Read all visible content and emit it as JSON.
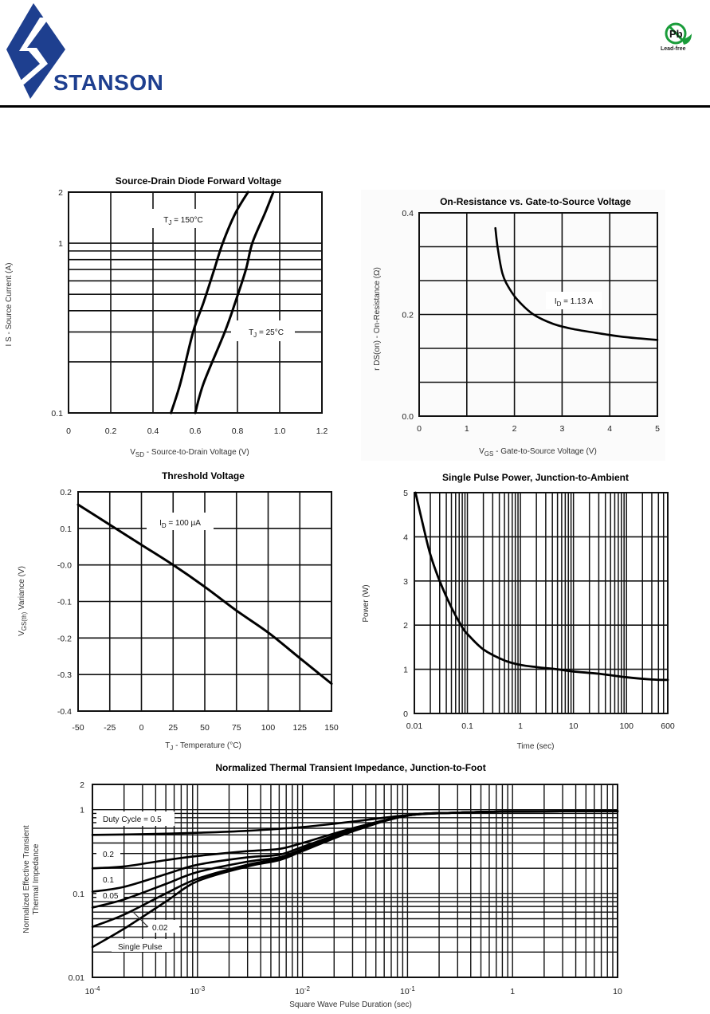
{
  "header": {
    "brand": "STANSON",
    "brand_color": "#1e3f8f",
    "lead_free_badge": {
      "symbol": "Pb",
      "label": "Lead-free",
      "color": "#1a9c3a"
    }
  },
  "chart_data": [
    {
      "id": "diode",
      "type": "line",
      "title": "Source-Drain Diode Forward Voltage",
      "xlabel": "V",
      "xlabel_sub": "SD",
      "xlabel_rest": "  -  Source-to-Drain Voltage (V)",
      "ylabel": "I S  -  Source Current (A)",
      "xscale": "linear",
      "yscale": "log",
      "xlim": [
        0,
        1.2
      ],
      "ylim": [
        0.1,
        2
      ],
      "xticks": [
        "0",
        "0.2",
        "0.4",
        "0.6",
        "0.8",
        "1.0",
        "1.2"
      ],
      "yticks": [
        {
          "v": 2,
          "label": "2"
        },
        {
          "v": 1,
          "label": "1"
        },
        {
          "v": 0.1,
          "label": "0.1"
        }
      ],
      "grid": true,
      "series": [
        {
          "name": "TJ = 150°C",
          "label_main": "T",
          "label_sub": "J",
          "label_rest": " = 150°C",
          "x": [
            0.485,
            0.53,
            0.59,
            0.64,
            0.69,
            0.73,
            0.79,
            0.85
          ],
          "y": [
            0.1,
            0.15,
            0.3,
            0.45,
            0.7,
            1.0,
            1.5,
            2.0
          ]
        },
        {
          "name": "TJ = 25°C",
          "label_main": "T",
          "label_sub": "J",
          "label_rest": " = 25°C",
          "x": [
            0.6,
            0.64,
            0.74,
            0.79,
            0.84,
            0.87,
            0.93,
            0.97
          ],
          "y": [
            0.1,
            0.15,
            0.3,
            0.45,
            0.7,
            1.0,
            1.5,
            2.0
          ]
        }
      ]
    },
    {
      "id": "rdson",
      "type": "line",
      "title": "On-Resistance vs. Gate-to-Source Voltage",
      "xlabel": "V",
      "xlabel_sub": "GS",
      "xlabel_rest": " - Gate-to-Source Voltage (V)",
      "ylabel": "r DS(on)  -  On-Resistance (Ω)",
      "xlim": [
        0,
        5
      ],
      "ylim": [
        0,
        0.4
      ],
      "xticks": [
        "0",
        "1",
        "2",
        "3",
        "4",
        "5"
      ],
      "yticks": [
        {
          "v": 0.4,
          "label": "0.4"
        },
        {
          "v": 0.2,
          "label": "0.2"
        },
        {
          "v": 0.0,
          "label": "0.0"
        }
      ],
      "grid": true,
      "annotation": {
        "main": "I",
        "sub": "D",
        "rest": " = 1.13 A"
      },
      "series": [
        {
          "name": "ID = 1.13 A",
          "x": [
            1.6,
            1.65,
            1.75,
            1.9,
            2.1,
            2.4,
            2.8,
            3.2,
            3.7,
            4.2,
            4.6,
            5.0
          ],
          "y": [
            0.37,
            0.33,
            0.28,
            0.25,
            0.225,
            0.2,
            0.182,
            0.172,
            0.164,
            0.157,
            0.153,
            0.15
          ]
        }
      ]
    },
    {
      "id": "vth",
      "type": "line",
      "title": "Threshold Voltage",
      "xlabel": "T",
      "xlabel_sub": "J",
      "xlabel_rest": "  -  Temperature (°C)",
      "ylabel": "V GS(th)  Variance (V)",
      "xlim": [
        -50,
        150
      ],
      "ylim": [
        -0.4,
        0.2
      ],
      "xticks": [
        "-50",
        "-25",
        "0",
        "25",
        "50",
        "75",
        "100",
        "125",
        "150"
      ],
      "yticks": [
        {
          "v": 0.2,
          "label": "0.2"
        },
        {
          "v": 0.1,
          "label": "0.1"
        },
        {
          "v": 0.0,
          "label": "-0.0"
        },
        {
          "v": -0.1,
          "label": "-0.1"
        },
        {
          "v": -0.2,
          "label": "-0.2"
        },
        {
          "v": -0.3,
          "label": "-0.3"
        },
        {
          "v": -0.4,
          "label": "-0.4"
        }
      ],
      "grid": true,
      "annotation": {
        "main": "I",
        "sub": "D",
        "rest": " = 100 µA"
      },
      "series": [
        {
          "name": "ID = 100 µA",
          "x": [
            -50,
            -25,
            0,
            25,
            50,
            75,
            100,
            125,
            150
          ],
          "y": [
            0.165,
            0.11,
            0.055,
            0.0,
            -0.06,
            -0.125,
            -0.185,
            -0.255,
            -0.325
          ]
        }
      ]
    },
    {
      "id": "power",
      "type": "line",
      "title": "Single Pulse Power, Junction-to-Ambient",
      "xlabel": "Time (sec)",
      "ylabel": "Power  (W)",
      "xscale": "log",
      "xlim": [
        0.01,
        600
      ],
      "ylim": [
        0,
        5
      ],
      "xticks": [
        {
          "v": 0.01,
          "label": "0.01"
        },
        {
          "v": 0.1,
          "label": "0.1"
        },
        {
          "v": 1,
          "label": "1"
        },
        {
          "v": 10,
          "label": "10"
        },
        {
          "v": 100,
          "label": "100"
        },
        {
          "v": 600,
          "label": "600"
        }
      ],
      "yticks": [
        "0",
        "1",
        "2",
        "3",
        "4",
        "5"
      ],
      "grid": true,
      "series": [
        {
          "name": "Single Pulse",
          "x": [
            0.0105,
            0.015,
            0.02,
            0.03,
            0.05,
            0.08,
            0.1,
            0.2,
            0.5,
            1,
            2,
            5,
            10,
            30,
            100,
            300,
            600
          ],
          "y": [
            5.0,
            4.2,
            3.6,
            3.0,
            2.4,
            1.95,
            1.8,
            1.45,
            1.2,
            1.1,
            1.05,
            1.0,
            0.95,
            0.9,
            0.82,
            0.77,
            0.76
          ]
        }
      ]
    },
    {
      "id": "zth",
      "type": "line",
      "title": "Normalized Thermal Transient Impedance, Junction-to-Foot",
      "xlabel": "Square Wave Pulse Duration (sec)",
      "ylabel_line1": "Normalized Effective Transient",
      "ylabel_line2": "Thermal Impedance",
      "xscale": "log",
      "yscale": "log",
      "xlim": [
        0.0001,
        10
      ],
      "ylim": [
        0.01,
        2
      ],
      "xticks": [
        {
          "v": 0.0001,
          "base": "10",
          "exp": "-4"
        },
        {
          "v": 0.001,
          "base": "10",
          "exp": "-3"
        },
        {
          "v": 0.01,
          "base": "10",
          "exp": "-2"
        },
        {
          "v": 0.1,
          "base": "10",
          "exp": "-1"
        },
        {
          "v": 1,
          "base": "1",
          "exp": ""
        },
        {
          "v": 10,
          "base": "10",
          "exp": ""
        }
      ],
      "yticks": [
        {
          "v": 2,
          "label": "2"
        },
        {
          "v": 1,
          "label": "1"
        },
        {
          "v": 0.1,
          "label": "0.1"
        },
        {
          "v": 0.01,
          "label": "0.01"
        }
      ],
      "grid": true,
      "labels": [
        "Duty Cycle = 0.5",
        "0.2",
        "0.1",
        "0.05",
        "0.02",
        "Single Pulse"
      ],
      "series": [
        {
          "name": "Duty Cycle = 0.5",
          "x": [
            0.0001,
            0.0003,
            0.001,
            0.003,
            0.01,
            0.03,
            0.1,
            0.3,
            1,
            10
          ],
          "y": [
            0.5,
            0.51,
            0.53,
            0.56,
            0.62,
            0.72,
            0.86,
            0.92,
            0.95,
            0.96
          ]
        },
        {
          "name": "0.2",
          "x": [
            0.0001,
            0.0002,
            0.0005,
            0.001,
            0.003,
            0.006,
            0.01,
            0.03,
            0.1,
            0.3,
            1,
            10
          ],
          "y": [
            0.2,
            0.21,
            0.25,
            0.28,
            0.32,
            0.34,
            0.4,
            0.6,
            0.85,
            0.92,
            0.95,
            0.96
          ]
        },
        {
          "name": "0.1",
          "x": [
            0.0001,
            0.0002,
            0.0005,
            0.001,
            0.003,
            0.006,
            0.01,
            0.03,
            0.1,
            0.3,
            1,
            10
          ],
          "y": [
            0.105,
            0.12,
            0.17,
            0.22,
            0.27,
            0.29,
            0.36,
            0.58,
            0.85,
            0.92,
            0.95,
            0.96
          ]
        },
        {
          "name": "0.05",
          "x": [
            0.0001,
            0.0002,
            0.0005,
            0.001,
            0.003,
            0.006,
            0.01,
            0.03,
            0.1,
            0.3,
            1,
            10
          ],
          "y": [
            0.068,
            0.085,
            0.13,
            0.18,
            0.24,
            0.27,
            0.34,
            0.57,
            0.85,
            0.92,
            0.95,
            0.96
          ]
        },
        {
          "name": "0.02",
          "x": [
            0.0001,
            0.0002,
            0.0005,
            0.001,
            0.003,
            0.006,
            0.01,
            0.03,
            0.1,
            0.3,
            1,
            10
          ],
          "y": [
            0.04,
            0.056,
            0.1,
            0.15,
            0.22,
            0.26,
            0.33,
            0.56,
            0.85,
            0.92,
            0.95,
            0.96
          ]
        },
        {
          "name": "Single Pulse",
          "x": [
            0.0001,
            0.0002,
            0.0005,
            0.001,
            0.003,
            0.006,
            0.01,
            0.03,
            0.1,
            0.3,
            1,
            10
          ],
          "y": [
            0.023,
            0.038,
            0.08,
            0.14,
            0.21,
            0.25,
            0.32,
            0.55,
            0.85,
            0.92,
            0.95,
            0.96
          ]
        }
      ]
    }
  ]
}
